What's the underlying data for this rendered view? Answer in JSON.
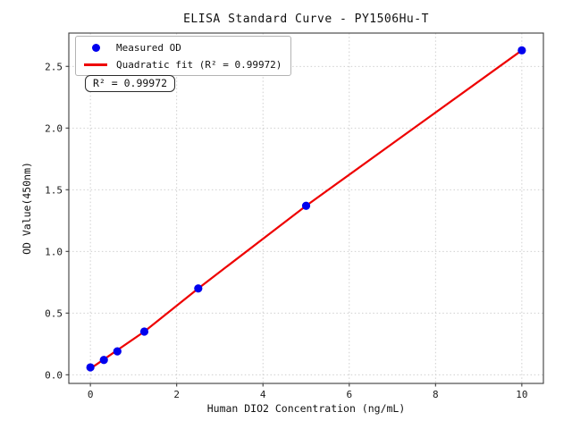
{
  "chart_data": {
    "type": "scatter",
    "title": "ELISA Standard Curve - PY1506Hu-T",
    "xlabel": "Human DIO2 Concentration (ng/mL)",
    "ylabel": "OD Value(450nm)",
    "annotation": "R² = 0.99972",
    "xlim": [
      -0.5,
      10.5
    ],
    "ylim": [
      -0.07,
      2.77
    ],
    "x_ticks": {
      "values": [
        0,
        2,
        4,
        6,
        8,
        10
      ],
      "labels": [
        "0",
        "2",
        "4",
        "6",
        "8",
        "10"
      ]
    },
    "y_ticks": {
      "values": [
        0,
        0.5,
        1.0,
        1.5,
        2.0,
        2.5
      ],
      "labels": [
        "0.0",
        "0.5",
        "1.0",
        "1.5",
        "2.0",
        "2.5"
      ]
    },
    "grid": {
      "show": true,
      "style": "dotted",
      "color": "#c9c9c9"
    },
    "legend_position": "upper left",
    "series": [
      {
        "name": "Measured OD",
        "type": "scatter",
        "color": "#0000ee",
        "x": [
          0,
          0.3125,
          0.625,
          1.25,
          2.5,
          5,
          10
        ],
        "y": [
          0.06,
          0.12,
          0.19,
          0.35,
          0.7,
          1.37,
          2.63
        ]
      },
      {
        "name": "Quadratic fit (R² = 0.99972)",
        "type": "line",
        "color": "#ee0000",
        "x": [
          0,
          1.25,
          2.5,
          5,
          7.5,
          10
        ],
        "y": [
          0.05,
          0.35,
          0.7,
          1.37,
          2.0,
          2.63
        ]
      }
    ],
    "frame_color": "#3d3d3d",
    "tick_text_color": "#1a1a1a"
  }
}
